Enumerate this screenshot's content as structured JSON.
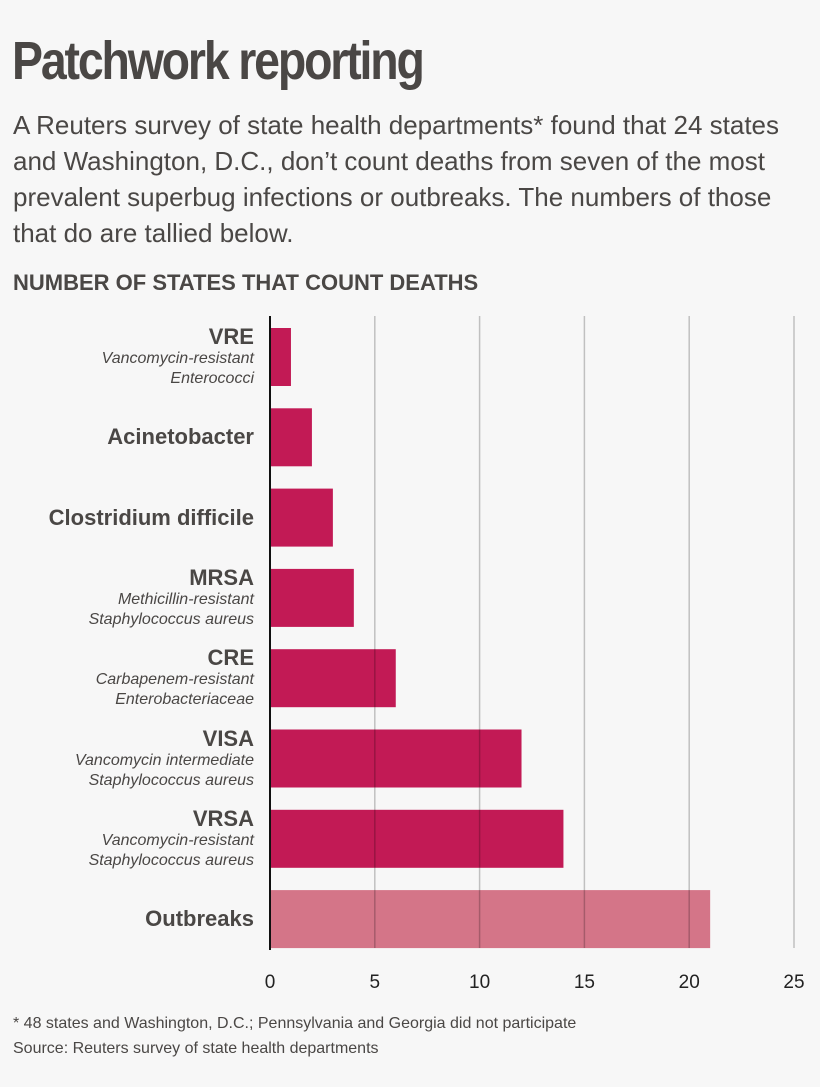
{
  "title": "Patchwork reporting",
  "subtitle": "A Reuters survey of state health departments* found that 24 states and Washington, D.C., don’t count deaths from seven of the most prevalent superbug infections or outbreaks. The numbers of those that do are tallied below.",
  "footnote": "* 48 states and Washington, D.C.; Pennsylvania and Georgia did not participate",
  "source": "Source: Reuters survey of state health departments",
  "chart_data": {
    "type": "bar",
    "orientation": "horizontal",
    "title": "NUMBER OF STATES THAT COUNT DEATHS",
    "categories": [
      {
        "label": "VRE",
        "sublabel": [
          "Vancomycin-resistant",
          "Enterococci"
        ]
      },
      {
        "label": "Acinetobacter",
        "sublabel": []
      },
      {
        "label": "Clostridium difficile",
        "sublabel": []
      },
      {
        "label": "MRSA",
        "sublabel": [
          "Methicillin-resistant",
          "Staphylococcus aureus"
        ]
      },
      {
        "label": "CRE",
        "sublabel": [
          "Carbapenem-resistant",
          "Enterobacteriaceae"
        ]
      },
      {
        "label": "VISA",
        "sublabel": [
          "Vancomycin intermediate",
          "Staphylococcus aureus"
        ]
      },
      {
        "label": "VRSA",
        "sublabel": [
          "Vancomycin-resistant",
          "Staphylococcus aureus"
        ]
      },
      {
        "label": "Outbreaks",
        "sublabel": []
      }
    ],
    "values": [
      1,
      2,
      3,
      4,
      6,
      12,
      14,
      21
    ],
    "bar_colors": [
      "#c21a55",
      "#c21a55",
      "#c21a55",
      "#c21a55",
      "#c21a55",
      "#c21a55",
      "#c21a55",
      "#d47588"
    ],
    "xlim": [
      0,
      25
    ],
    "xticks": [
      "0",
      "5",
      "10",
      "15",
      "20",
      "25"
    ],
    "grid": true
  }
}
